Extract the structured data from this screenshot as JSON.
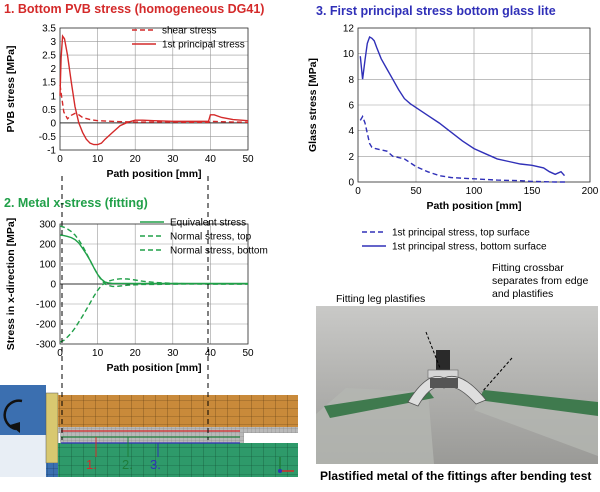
{
  "titles": {
    "pvb": "1. Bottom PVB stress (homogeneous DG41)",
    "metal": "2. Metal x-stress (fitting)",
    "glass": "3. First principal stress bottom glass lite"
  },
  "photo": {
    "caption": "Plastified metal of the fittings after bending test",
    "label_left": "Fitting leg plastifies",
    "label_right_lines": [
      "Fitting crossbar",
      "separates from edge",
      "and plastifies"
    ]
  },
  "mesh_labels": [
    "1.",
    "2.",
    "3."
  ],
  "colors": {
    "pvb": "#d42a2a",
    "metal": "#21a049",
    "glass": "#3030b8",
    "title_pvb": "#d42a2a",
    "title_metal": "#21a049",
    "title_glass": "#3030b8"
  },
  "chart_data": [
    {
      "type": "line",
      "title": "1. Bottom PVB stress (homogeneous DG41)",
      "xlabel": "Path position [mm]",
      "ylabel": "PVB stress [MPa]",
      "xlim": [
        0,
        50
      ],
      "ylim": [
        -1,
        3.5
      ],
      "xticks": [
        0,
        10,
        20,
        30,
        40,
        50
      ],
      "yticks": [
        -1,
        -0.5,
        0,
        0.5,
        1,
        1.5,
        2,
        2.5,
        3,
        3.5
      ],
      "grid": true,
      "legend_position": "top-right",
      "series": [
        {
          "name": "shear stress",
          "style": "dashed",
          "x": [
            0,
            0.5,
            1,
            2,
            3,
            4,
            5,
            6,
            8,
            10,
            15,
            20,
            25,
            30,
            35,
            39.5,
            40,
            41,
            44,
            47,
            50
          ],
          "y": [
            1.4,
            0.9,
            0.4,
            0.15,
            0.28,
            0.35,
            0.3,
            0.2,
            0.12,
            0.08,
            0.05,
            0.03,
            0.03,
            0.03,
            0.02,
            0.02,
            0.05,
            0.05,
            0.04,
            0.03,
            0.02
          ]
        },
        {
          "name": "1st principal stress",
          "style": "solid",
          "x": [
            0,
            0.3,
            0.7,
            1.2,
            2,
            3,
            4,
            5,
            6,
            7,
            8,
            9,
            10,
            11,
            12,
            14,
            16,
            18,
            20,
            22,
            25,
            30,
            35,
            39.5,
            40,
            41,
            43,
            46,
            50
          ],
          "y": [
            1.0,
            2.4,
            3.2,
            3.1,
            2.5,
            1.5,
            0.6,
            0.0,
            -0.35,
            -0.6,
            -0.75,
            -0.8,
            -0.8,
            -0.75,
            -0.6,
            -0.35,
            -0.1,
            0.02,
            0.1,
            0.1,
            0.08,
            0.06,
            0.06,
            0.06,
            0.3,
            0.3,
            0.2,
            0.12,
            0.08
          ]
        }
      ]
    },
    {
      "type": "line",
      "title": "2. Metal x-stress (fitting)",
      "xlabel": "Path position [mm]",
      "ylabel": "Stress in x-direction [MPa]",
      "xlim": [
        0,
        50
      ],
      "ylim": [
        -300,
        300
      ],
      "xticks": [
        0,
        10,
        20,
        30,
        40,
        50
      ],
      "yticks": [
        -300,
        -200,
        -100,
        0,
        100,
        200,
        300
      ],
      "grid": true,
      "legend_position": "top-right",
      "series": [
        {
          "name": "Equivalent stress",
          "style": "solid",
          "x": [
            0,
            1,
            2,
            3,
            4,
            5,
            6,
            7,
            8,
            9,
            10,
            11,
            12,
            13,
            14,
            16,
            20,
            25,
            30,
            35,
            40,
            44,
            50
          ],
          "y": [
            245,
            242,
            238,
            232,
            222,
            205,
            178,
            150,
            118,
            82,
            48,
            24,
            10,
            5,
            3,
            3,
            3,
            3,
            3,
            3,
            3,
            3,
            3
          ]
        },
        {
          "name": "Normal stress, top",
          "style": "dashed",
          "x": [
            0,
            1,
            2,
            3,
            4,
            5,
            6,
            7,
            8,
            9,
            10,
            11,
            12,
            13,
            14,
            15,
            16,
            17,
            18,
            20,
            22,
            25,
            30,
            35,
            40,
            44,
            50
          ],
          "y": [
            290,
            284,
            275,
            262,
            245,
            220,
            190,
            155,
            118,
            82,
            48,
            20,
            0,
            -8,
            -12,
            -12,
            -10,
            -8,
            -6,
            -4,
            -2,
            -2,
            -1,
            0,
            0,
            0,
            0
          ]
        },
        {
          "name": "Normal stress, bottom",
          "style": "dashed",
          "x": [
            0,
            1,
            2,
            3,
            4,
            5,
            6,
            7,
            8,
            9,
            10,
            11,
            12,
            13,
            14,
            15,
            16,
            18,
            20,
            22,
            25,
            30,
            35,
            40,
            44,
            50
          ],
          "y": [
            -290,
            -282,
            -265,
            -245,
            -220,
            -190,
            -160,
            -128,
            -95,
            -62,
            -32,
            -8,
            5,
            15,
            20,
            24,
            26,
            25,
            20,
            14,
            8,
            3,
            1,
            0,
            0,
            0
          ]
        }
      ]
    },
    {
      "type": "line",
      "title": "3. First principal stress bottom glass lite",
      "xlabel": "Path position [mm]",
      "ylabel": "Glass stress [MPa]",
      "xlim": [
        0,
        200
      ],
      "ylim": [
        0,
        12
      ],
      "xticks": [
        0,
        50,
        100,
        150,
        200
      ],
      "yticks": [
        0,
        2,
        4,
        6,
        8,
        10,
        12
      ],
      "grid": true,
      "legend_position": "bottom",
      "series": [
        {
          "name": "1st principal stress, top surface",
          "style": "dashed",
          "x": [
            2,
            4,
            6,
            8,
            10,
            12,
            15,
            20,
            25,
            30,
            40,
            50,
            60,
            70,
            80,
            90,
            100,
            120,
            140,
            150,
            160,
            170,
            180
          ],
          "y": [
            4.8,
            5.1,
            4.6,
            3.8,
            3.0,
            2.7,
            2.6,
            2.5,
            2.4,
            2.0,
            1.8,
            1.2,
            0.8,
            0.5,
            0.35,
            0.3,
            0.25,
            0.15,
            0.1,
            0.05,
            0.02,
            0.0,
            0.0
          ]
        },
        {
          "name": "1st principal stress, bottom surface",
          "style": "solid",
          "x": [
            2,
            4,
            6,
            8,
            10,
            12,
            14,
            16,
            20,
            25,
            30,
            35,
            40,
            45,
            50,
            60,
            70,
            80,
            90,
            100,
            110,
            120,
            130,
            140,
            150,
            160,
            165,
            170,
            175,
            178
          ],
          "y": [
            9.8,
            8.0,
            9.5,
            10.8,
            11.3,
            11.2,
            11.0,
            10.5,
            9.6,
            8.8,
            8.0,
            7.2,
            6.5,
            6.1,
            5.8,
            5.2,
            4.6,
            3.9,
            3.2,
            2.6,
            2.2,
            1.8,
            1.6,
            1.4,
            1.3,
            1.1,
            0.8,
            0.6,
            0.8,
            0.5
          ]
        }
      ]
    }
  ]
}
